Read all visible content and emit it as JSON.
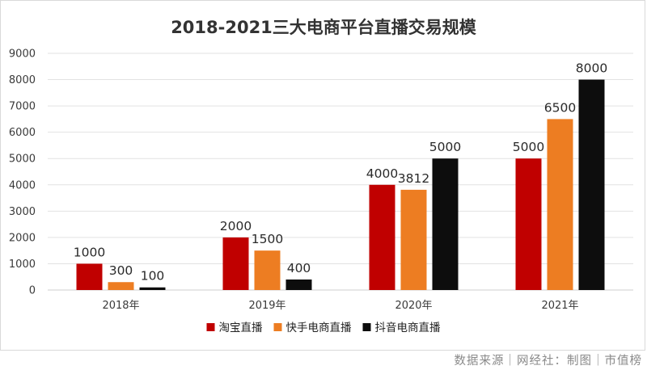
{
  "source_text": "数据来源｜网经社：制图｜市值榜",
  "chart_data": {
    "type": "bar",
    "title": "2018-2021三大电商平台直播交易规模",
    "categories": [
      "2018年",
      "2019年",
      "2020年",
      "2021年"
    ],
    "ylim": [
      0,
      9000
    ],
    "yticks": [
      0,
      1000,
      2000,
      3000,
      4000,
      5000,
      6000,
      7000,
      8000,
      9000
    ],
    "grid": true,
    "legend_position": "bottom",
    "series": [
      {
        "name": "淘宝直播",
        "color": "#c00000",
        "values": [
          1000,
          2000,
          4000,
          5000
        ]
      },
      {
        "name": "快手电商直播",
        "color": "#ed7d22",
        "values": [
          300,
          1500,
          3812,
          6500
        ]
      },
      {
        "name": "抖音电商直播",
        "color": "#0d0d0d",
        "values": [
          100,
          400,
          5000,
          8000
        ]
      }
    ]
  }
}
